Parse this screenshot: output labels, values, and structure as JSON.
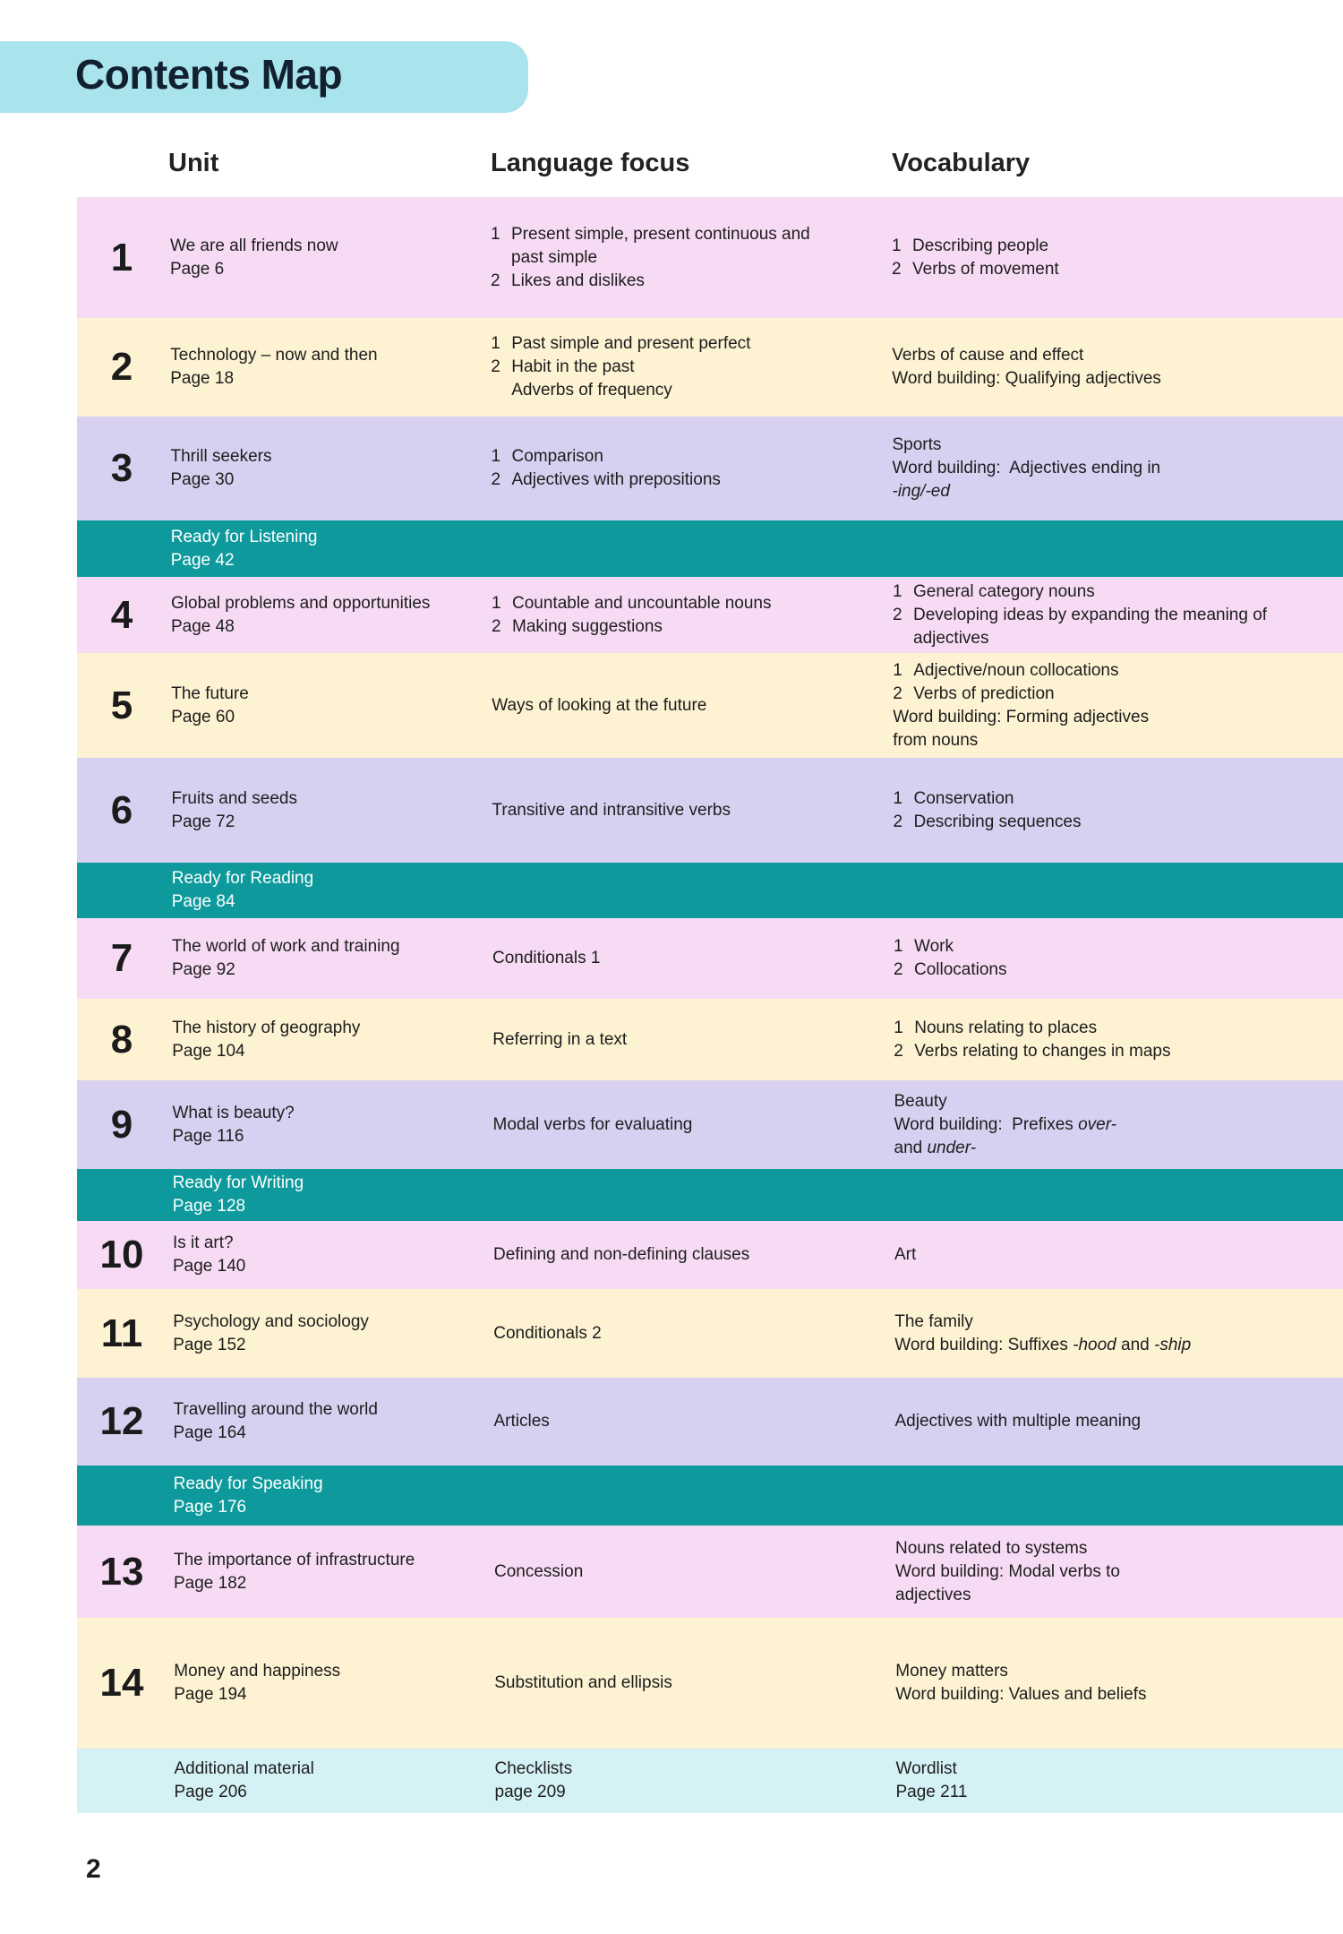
{
  "header": {
    "title": "Contents Map"
  },
  "columns": {
    "unit": "Unit",
    "language_focus": "Language focus",
    "vocabulary": "Vocabulary"
  },
  "rows": [
    {
      "number": "1",
      "unit": "We are all friends now",
      "page": "Page 6",
      "language_focus": [
        {
          "num": "1",
          "lines": [
            "Present simple, present continuous and",
            "past simple"
          ]
        },
        {
          "num": "2",
          "lines": [
            "Likes and dislikes"
          ]
        }
      ],
      "vocabulary": [
        {
          "num": "1",
          "lines": [
            "Describing people"
          ]
        },
        {
          "num": "2",
          "lines": [
            "Verbs of movement"
          ]
        }
      ]
    },
    {
      "number": "2",
      "unit": "Technology – now and then",
      "page": "Page 18",
      "language_focus": [
        {
          "num": "1",
          "lines": [
            "Past simple and present perfect"
          ]
        },
        {
          "num": "2",
          "lines": [
            "Habit in the past",
            "Adverbs of frequency"
          ]
        }
      ],
      "vocabulary": [
        {
          "lines": [
            "Verbs of cause and effect",
            "Word building: Qualifying adjectives"
          ]
        }
      ]
    },
    {
      "number": "3",
      "unit": "Thrill seekers",
      "page": "Page 30",
      "language_focus": [
        {
          "num": "1",
          "lines": [
            "Comparison"
          ]
        },
        {
          "num": "2",
          "lines": [
            "Adjectives with prepositions"
          ]
        }
      ],
      "vocabulary": [
        {
          "lines": [
            "Sports",
            "Word building:  Adjectives ending in",
            [
              {
                "em": "-ing/-ed"
              }
            ]
          ]
        }
      ]
    },
    {
      "title": "Ready for Listening",
      "page": "Page 42"
    },
    {
      "number": "4",
      "unit": "Global problems and opportunities",
      "page": "Page 48",
      "language_focus": [
        {
          "num": "1",
          "lines": [
            "Countable and uncountable nouns"
          ]
        },
        {
          "num": "2",
          "lines": [
            "Making suggestions"
          ]
        }
      ],
      "vocabulary": [
        {
          "num": "1",
          "lines": [
            "General category nouns"
          ]
        },
        {
          "num": "2",
          "lines": [
            "Developing ideas by expanding the meaning of",
            "adjectives"
          ]
        }
      ]
    },
    {
      "number": "5",
      "unit": "The future",
      "page": "Page 60",
      "language_focus": [
        {
          "lines": [
            "Ways of looking at the future"
          ]
        }
      ],
      "vocabulary": [
        {
          "num": "1",
          "lines": [
            "Adjective/noun collocations"
          ]
        },
        {
          "num": "2",
          "lines": [
            "Verbs of prediction"
          ]
        },
        {
          "lines": [
            "Word building: Forming adjectives",
            "from nouns"
          ]
        }
      ]
    },
    {
      "number": "6",
      "unit": "Fruits and seeds",
      "page": "Page 72",
      "language_focus": [
        {
          "lines": [
            "Transitive and intransitive verbs"
          ]
        }
      ],
      "vocabulary": [
        {
          "num": "1",
          "lines": [
            "Conservation"
          ]
        },
        {
          "num": "2",
          "lines": [
            "Describing sequences"
          ]
        }
      ]
    },
    {
      "title": "Ready for Reading",
      "page": "Page 84"
    },
    {
      "number": "7",
      "unit": "The world of work and training",
      "page": "Page 92",
      "language_focus": [
        {
          "lines": [
            "Conditionals 1"
          ]
        }
      ],
      "vocabulary": [
        {
          "num": "1",
          "lines": [
            "Work"
          ]
        },
        {
          "num": "2",
          "lines": [
            "Collocations"
          ]
        }
      ]
    },
    {
      "number": "8",
      "unit": "The history of geography",
      "page": "Page 104",
      "language_focus": [
        {
          "lines": [
            "Referring in a text"
          ]
        }
      ],
      "vocabulary": [
        {
          "num": "1",
          "lines": [
            "Nouns relating to places"
          ]
        },
        {
          "num": "2",
          "lines": [
            "Verbs relating to changes in maps"
          ]
        }
      ]
    },
    {
      "number": "9",
      "unit": "What is beauty?",
      "page": "Page 116",
      "language_focus": [
        {
          "lines": [
            "Modal verbs for evaluating"
          ]
        }
      ],
      "vocabulary": [
        {
          "lines": [
            "Beauty",
            [
              {
                "text": "Word building:  Prefixes "
              },
              {
                "em": "over-"
              }
            ],
            [
              {
                "text": "and "
              },
              {
                "em": "under-"
              }
            ]
          ]
        }
      ]
    },
    {
      "title": "Ready for Writing",
      "page": "Page 128"
    },
    {
      "number": "10",
      "unit": "Is it art?",
      "page": "Page 140",
      "language_focus": [
        {
          "lines": [
            "Defining and non-defining clauses"
          ]
        }
      ],
      "vocabulary": [
        {
          "lines": [
            "Art"
          ]
        }
      ]
    },
    {
      "number": "11",
      "unit": "Psychology and sociology",
      "page": "Page 152",
      "language_focus": [
        {
          "lines": [
            "Conditionals 2"
          ]
        }
      ],
      "vocabulary": [
        {
          "lines": [
            "The family",
            [
              {
                "text": "Word building: Suffixes "
              },
              {
                "em": "-hood"
              },
              {
                "text": " and "
              },
              {
                "em": "-ship"
              }
            ]
          ]
        }
      ]
    },
    {
      "number": "12",
      "unit": "Travelling around the world",
      "page": "Page 164",
      "language_focus": [
        {
          "lines": [
            "Articles"
          ]
        }
      ],
      "vocabulary": [
        {
          "lines": [
            "Adjectives with multiple meaning"
          ]
        }
      ]
    },
    {
      "title": "Ready for Speaking",
      "page": "Page 176"
    },
    {
      "number": "13",
      "unit": "The importance of infrastructure",
      "page": "Page 182",
      "language_focus": [
        {
          "lines": [
            "Concession"
          ]
        }
      ],
      "vocabulary": [
        {
          "lines": [
            "Nouns related to systems",
            "Word building: Modal verbs to",
            "adjectives"
          ]
        }
      ]
    },
    {
      "number": "14",
      "unit": "Money and happiness",
      "page": "Page 194",
      "language_focus": [
        {
          "lines": [
            "Substitution and ellipsis"
          ]
        }
      ],
      "vocabulary": [
        {
          "lines": [
            "Money matters",
            "Word building: Values and beliefs"
          ]
        }
      ]
    },
    {
      "unit": "Additional material",
      "page": "Page 206",
      "language_focus": [
        {
          "lines": [
            "Checklists",
            "page 209"
          ]
        }
      ],
      "vocabulary": [
        {
          "lines": [
            "Wordlist",
            "Page 211"
          ]
        }
      ]
    }
  ],
  "footer": {
    "page_number": "2"
  }
}
